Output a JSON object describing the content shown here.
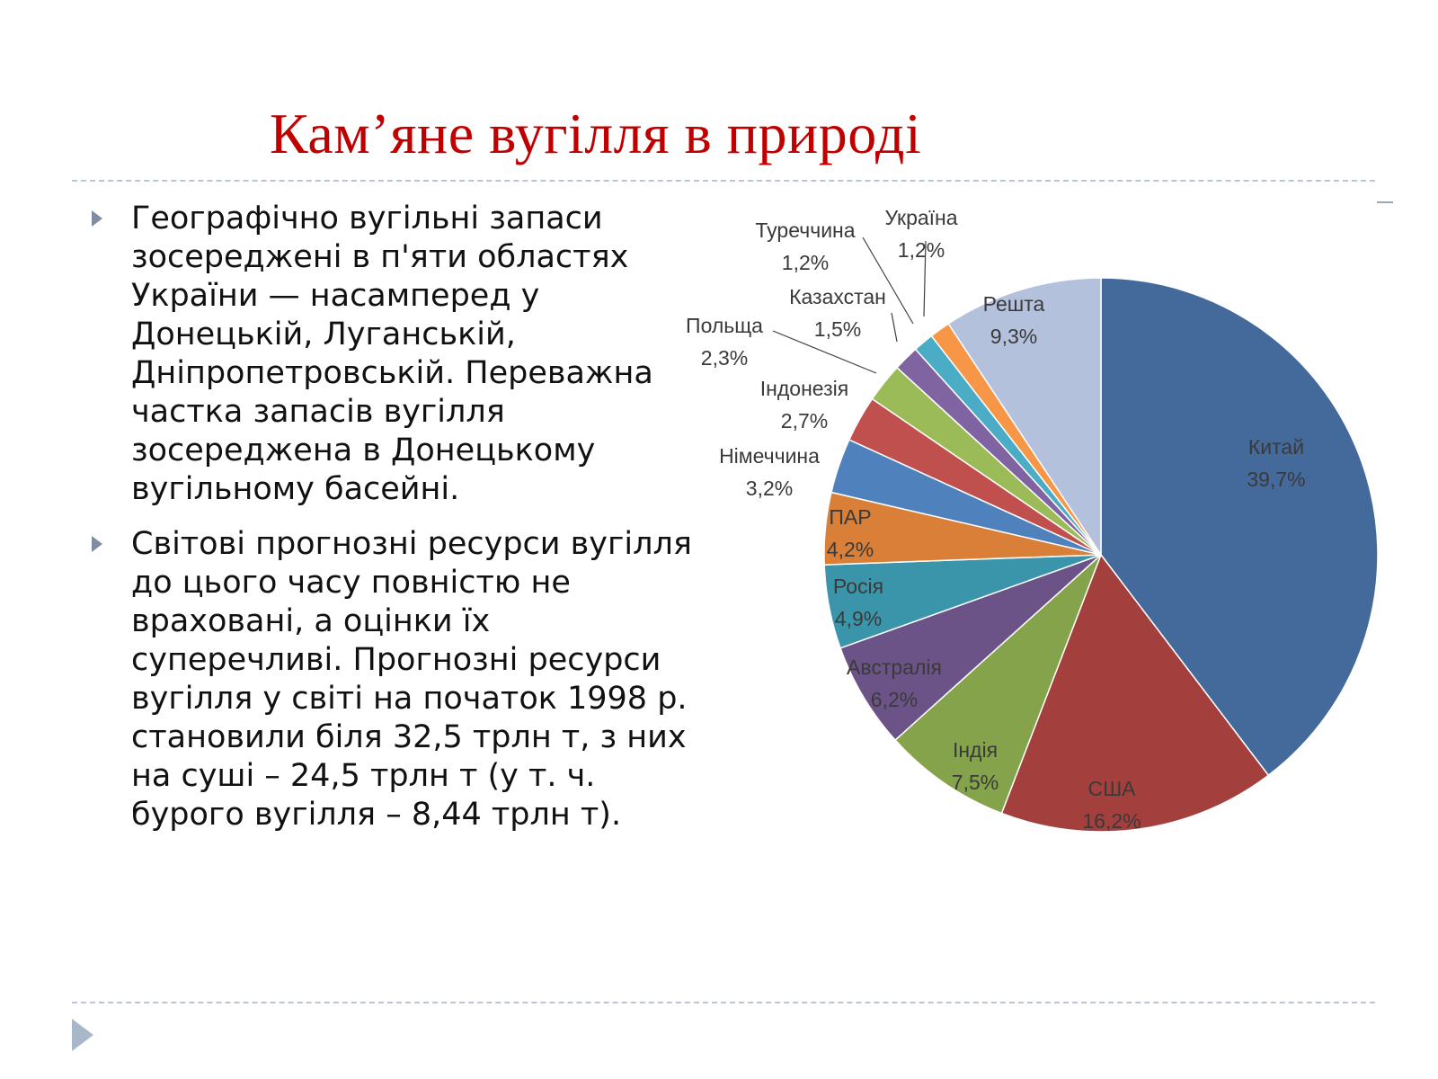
{
  "slide": {
    "title": "Кам’яне вугілля в природі",
    "bullets": [
      "Географічно вугільні запаси зосереджені в п'яти областях України — насамперед у Донецькій, Луганській, Дніпропетровській. Переважна частка запасів вугілля зосереджена в Донецькому вугільному басейні.",
      "Світові прогнозні ресурси вугілля до цього часу повністю не враховані, а оцінки їх суперечливі. Прогнозні ресурси вугілля у світі на початок 1998 р. становили біля 32,5 трлн т, з них на суші – 24,5 трлн т (у т. ч. бурого вугілля – 8,44 трлн т)."
    ]
  },
  "colors": {
    "title": "#c00000",
    "body_text": "#111111",
    "bullet_marker": "#7f8da3",
    "rule": "#b9c4d6",
    "nav_arrow": "#a9b7cb",
    "chart_label": "#3a3a3a"
  },
  "chart_data": {
    "type": "pie",
    "start": "12 o'clock",
    "direction": "clockwise",
    "slices": [
      {
        "label": "Китай",
        "value_label": "39,7%",
        "value": 39.7,
        "color": "#436a9b"
      },
      {
        "label": "США",
        "value_label": "16,2%",
        "value": 16.2,
        "color": "#a33f3c"
      },
      {
        "label": "Індія",
        "value_label": "7,5%",
        "value": 7.5,
        "color": "#84a34a"
      },
      {
        "label": "Австралія",
        "value_label": "6,2%",
        "value": 6.2,
        "color": "#6b5287"
      },
      {
        "label": "Росія",
        "value_label": "4,9%",
        "value": 4.9,
        "color": "#3a95ab"
      },
      {
        "label": "ПАР",
        "value_label": "4,2%",
        "value": 4.2,
        "color": "#d97f37"
      },
      {
        "label": "Німеччина",
        "value_label": "3,2%",
        "value": 3.2,
        "color": "#4f81bd"
      },
      {
        "label": "Індонезія",
        "value_label": "2,7%",
        "value": 2.7,
        "color": "#c0504d"
      },
      {
        "label": "Польща",
        "value_label": "2,3%",
        "value": 2.3,
        "color": "#9bbb59"
      },
      {
        "label": "Казахстан",
        "value_label": "1,5%",
        "value": 1.5,
        "color": "#8064a2"
      },
      {
        "label": "Туреччина",
        "value_label": "1,2%",
        "value": 1.2,
        "color": "#4bacc6"
      },
      {
        "label": "Україна",
        "value_label": "1,2%",
        "value": 1.2,
        "color": "#f79646"
      },
      {
        "label": "Решта",
        "value_label": "9,3%",
        "value": 9.3,
        "color": "#b4c1dc"
      }
    ]
  }
}
